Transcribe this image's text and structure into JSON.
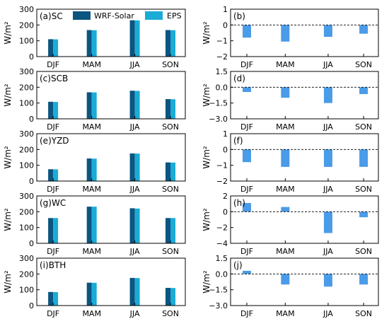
{
  "legend": [
    {
      "label": "WRF-Solar",
      "color": "#0b5580"
    },
    {
      "label": "EPS",
      "color": "#1aabd6"
    }
  ],
  "diff_color": "#4a9be8",
  "chart_data": [
    {
      "type": "bar",
      "panel_label": "(a)SC",
      "ylabel": "W/m²",
      "categories": [
        "DJF",
        "MAM",
        "JJA",
        "SON"
      ],
      "ylim": [
        0,
        300
      ],
      "yticks": [
        0,
        100,
        200,
        300
      ],
      "yticklabels": [
        "0",
        "100",
        "200",
        "300"
      ],
      "series": [
        {
          "name": "WRF-Solar",
          "values": [
            110,
            168,
            230,
            168
          ]
        },
        {
          "name": "EPS",
          "values": [
            109,
            167,
            229,
            167
          ]
        }
      ]
    },
    {
      "type": "bar",
      "panel_label": "(b)",
      "ylabel": "W/m²",
      "categories": [
        "DJF",
        "MAM",
        "JJA",
        "SON"
      ],
      "ylim": [
        -2,
        1
      ],
      "yticks": [
        -2,
        -1,
        0,
        1
      ],
      "yticklabels": [
        "−2",
        "−1",
        "0",
        "1"
      ],
      "zero_line": "dashed",
      "values": [
        -0.8,
        -1.05,
        -0.75,
        -0.55
      ]
    },
    {
      "type": "bar",
      "panel_label": "(c)SCB",
      "ylabel": "W/m²",
      "categories": [
        "DJF",
        "MAM",
        "JJA",
        "SON"
      ],
      "ylim": [
        0,
        300
      ],
      "yticks": [
        0,
        100,
        200,
        300
      ],
      "yticklabels": [
        "0",
        "100",
        "200",
        "300"
      ],
      "series": [
        {
          "name": "WRF-Solar",
          "values": [
            108,
            168,
            178,
            125
          ]
        },
        {
          "name": "EPS",
          "values": [
            107,
            167,
            177,
            124
          ]
        }
      ]
    },
    {
      "type": "bar",
      "panel_label": "(d)",
      "ylabel": "W/m²",
      "categories": [
        "DJF",
        "MAM",
        "JJA",
        "SON"
      ],
      "ylim": [
        -3,
        1.5
      ],
      "yticks": [
        -3,
        -1.5,
        0,
        1.5
      ],
      "yticklabels": [
        "−3.0",
        "−1.5",
        "0.0",
        "1.5"
      ],
      "zero_line": "dashed",
      "values": [
        -0.45,
        -1.0,
        -1.5,
        -0.65
      ]
    },
    {
      "type": "bar",
      "panel_label": "(e)YZD",
      "ylabel": "W/m²",
      "categories": [
        "DJF",
        "MAM",
        "JJA",
        "SON"
      ],
      "ylim": [
        0,
        300
      ],
      "yticks": [
        0,
        100,
        200,
        300
      ],
      "yticklabels": [
        "0",
        "100",
        "200",
        "300"
      ],
      "series": [
        {
          "name": "WRF-Solar",
          "values": [
            75,
            143,
            175,
            118
          ]
        },
        {
          "name": "EPS",
          "values": [
            74,
            142,
            174,
            117
          ]
        }
      ]
    },
    {
      "type": "bar",
      "panel_label": "(f)",
      "ylabel": "W/m²",
      "categories": [
        "DJF",
        "MAM",
        "JJA",
        "SON"
      ],
      "ylim": [
        -2,
        1
      ],
      "yticks": [
        -2,
        -1,
        0,
        1
      ],
      "yticklabels": [
        "−2",
        "−1",
        "0",
        "1"
      ],
      "zero_line": "dashed",
      "values": [
        -0.8,
        -1.1,
        -1.1,
        -1.1
      ]
    },
    {
      "type": "bar",
      "panel_label": "(g)WC",
      "ylabel": "W/m²",
      "categories": [
        "DJF",
        "MAM",
        "JJA",
        "SON"
      ],
      "ylim": [
        0,
        300
      ],
      "yticks": [
        0,
        100,
        200,
        300
      ],
      "yticklabels": [
        "0",
        "100",
        "200",
        "300"
      ],
      "series": [
        {
          "name": "WRF-Solar",
          "values": [
            160,
            232,
            222,
            160
          ]
        },
        {
          "name": "EPS",
          "values": [
            160,
            232,
            220,
            160
          ]
        }
      ]
    },
    {
      "type": "bar",
      "panel_label": "(h)",
      "ylabel": "W/m²",
      "categories": [
        "DJF",
        "MAM",
        "JJA",
        "SON"
      ],
      "ylim": [
        -4,
        2
      ],
      "yticks": [
        -4,
        -2,
        0,
        2
      ],
      "yticklabels": [
        "−4",
        "−2",
        "0",
        "2"
      ],
      "zero_line": "dashed",
      "values": [
        1.1,
        0.6,
        -2.7,
        -0.7
      ]
    },
    {
      "type": "bar",
      "panel_label": "(i)BTH",
      "ylabel": "W/m²",
      "categories": [
        "DJF",
        "MAM",
        "JJA",
        "SON"
      ],
      "ylim": [
        0,
        300
      ],
      "yticks": [
        0,
        100,
        200,
        300
      ],
      "yticklabels": [
        "0",
        "100",
        "200",
        "300"
      ],
      "series": [
        {
          "name": "WRF-Solar",
          "values": [
            86,
            145,
            175,
            112
          ]
        },
        {
          "name": "EPS",
          "values": [
            85,
            144,
            174,
            111
          ]
        }
      ]
    },
    {
      "type": "bar",
      "panel_label": "(j)",
      "ylabel": "W/m²",
      "categories": [
        "DJF",
        "MAM",
        "JJA",
        "SON"
      ],
      "ylim": [
        -3,
        1.5
      ],
      "yticks": [
        -3,
        -1.5,
        0,
        1.5
      ],
      "yticklabels": [
        "−3.0",
        "−1.5",
        "0.0",
        "1.5"
      ],
      "zero_line": "dashed",
      "values": [
        0.3,
        -1.0,
        -1.2,
        -1.0
      ]
    }
  ]
}
